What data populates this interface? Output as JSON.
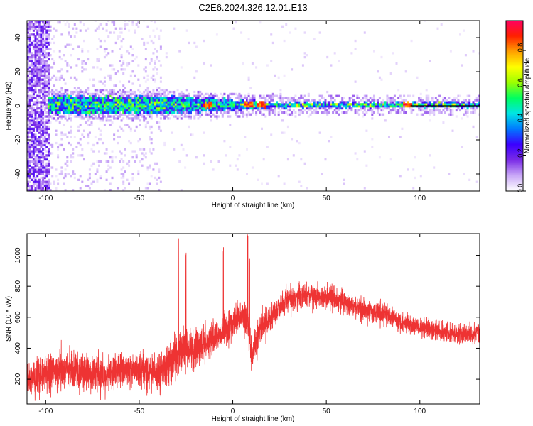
{
  "figure": {
    "title": "C2E6.2024.326.12.01.E13"
  },
  "chart_data": [
    {
      "type": "heatmap",
      "title": "C2E6.2024.326.12.01.E13",
      "xlabel": "Height of straight line (km)",
      "ylabel": "Frequency (Hz)",
      "xlim": [
        -110,
        132
      ],
      "ylim": [
        -50,
        50
      ],
      "x_ticks": [
        -100,
        -50,
        0,
        50,
        100
      ],
      "y_ticks": [
        -40,
        -20,
        0,
        20,
        40
      ],
      "grid": false,
      "colorbar": {
        "label": "Normalized spectral amplitude",
        "range": [
          0,
          0.97
        ],
        "ticks": [
          0.0,
          0.2,
          0.4,
          0.6,
          0.8
        ],
        "tick_labels": [
          "0.0",
          "0.2",
          "0.4",
          "0.6",
          "0.8"
        ],
        "colormap": "rainbow-violet-to-magenta",
        "colors": [
          "#ffffff",
          "#c9a8f7",
          "#7a2be6",
          "#3b00ff",
          "#0078ff",
          "#00e5e5",
          "#00ff60",
          "#9cff00",
          "#ffff00",
          "#ffa000",
          "#ff2000",
          "#ff0060"
        ]
      },
      "features": {
        "main_band_center_hz": 0,
        "main_band_half_width_hz": [
          5,
          1.5
        ],
        "strong_spots_x_km": [
          -14,
          8,
          15,
          93
        ]
      }
    },
    {
      "type": "line",
      "xlabel": "Height of straight line (km)",
      "ylabel": "SNR (10 * v/v)",
      "xlim": [
        -110,
        132
      ],
      "ylim": [
        40,
        1140
      ],
      "x_ticks": [
        -100,
        -50,
        0,
        50,
        100
      ],
      "y_ticks": [
        200,
        400,
        600,
        800,
        1000
      ],
      "grid": false,
      "series": [
        {
          "color": "#ee3333",
          "x": [
            -110,
            -100,
            -90,
            -80,
            -70,
            -60,
            -50,
            -40,
            -35,
            -30,
            -25,
            -20,
            -15,
            -10,
            -5,
            0,
            5,
            8,
            10,
            15,
            20,
            30,
            40,
            50,
            60,
            70,
            80,
            90,
            100,
            110,
            120,
            132
          ],
          "mean": [
            190,
            240,
            260,
            250,
            240,
            255,
            250,
            240,
            290,
            370,
            390,
            400,
            440,
            470,
            500,
            560,
            600,
            560,
            350,
            540,
            600,
            720,
            740,
            730,
            700,
            650,
            620,
            570,
            540,
            510,
            490,
            490
          ],
          "spread": [
            120,
            140,
            150,
            150,
            150,
            150,
            140,
            140,
            160,
            190,
            170,
            160,
            140,
            150,
            140,
            130,
            120,
            150,
            140,
            130,
            110,
            100,
            100,
            90,
            90,
            90,
            90,
            80,
            80,
            80,
            80,
            80
          ],
          "peaks": [
            {
              "x": -29,
              "y": 1120
            },
            {
              "x": -25,
              "y": 1020
            },
            {
              "x": -5,
              "y": 1080
            },
            {
              "x": 8,
              "y": 1140
            },
            {
              "x": 9,
              "y": 1000
            }
          ]
        }
      ]
    }
  ]
}
